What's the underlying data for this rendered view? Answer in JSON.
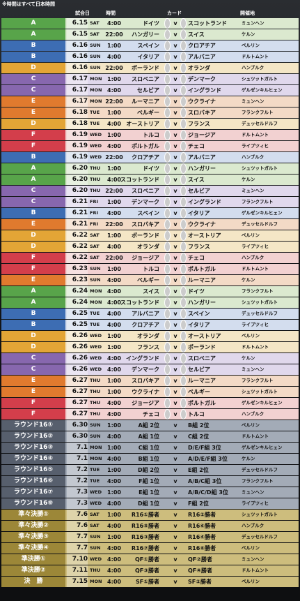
{
  "note": "※時間はすべて日本時間",
  "header": {
    "date": "試合日",
    "time": "時間",
    "card": "カード",
    "venue": "開催地"
  },
  "vs": "v",
  "rows": [
    {
      "group": "A",
      "date": "6.15",
      "day": "SAT",
      "time": "4:00",
      "home": "ドイツ",
      "away": "スコットランド",
      "venue": "ミュンヘン"
    },
    {
      "group": "A",
      "date": "6.15",
      "day": "SAT",
      "time": "22:00",
      "home": "ハンガリー",
      "away": "スイス",
      "venue": "ケルン"
    },
    {
      "group": "B",
      "date": "6.16",
      "day": "SUN",
      "time": "1:00",
      "home": "スペイン",
      "away": "クロアチア",
      "venue": "ベルリン"
    },
    {
      "group": "B",
      "date": "6.16",
      "day": "SUN",
      "time": "4:00",
      "home": "イタリア",
      "away": "アルバニア",
      "venue": "ドルトムント"
    },
    {
      "group": "D",
      "date": "6.16",
      "day": "SUN",
      "time": "22:00",
      "home": "ポーランド",
      "away": "オランダ",
      "venue": "ハンブルク"
    },
    {
      "group": "C",
      "date": "6.17",
      "day": "MON",
      "time": "1:00",
      "home": "スロベニア",
      "away": "デンマーク",
      "venue": "シュツットガルト"
    },
    {
      "group": "C",
      "date": "6.17",
      "day": "MON",
      "time": "4:00",
      "home": "セルビア",
      "away": "イングランド",
      "venue": "ゲルゼンキルヒェン"
    },
    {
      "group": "E",
      "date": "6.17",
      "day": "MON",
      "time": "22:00",
      "home": "ルーマニア",
      "away": "ウクライナ",
      "venue": "ミュンヘン"
    },
    {
      "group": "E",
      "date": "6.18",
      "day": "TUE",
      "time": "1:00",
      "home": "ベルギー",
      "away": "スロバキア",
      "venue": "フランクフルト"
    },
    {
      "group": "D",
      "date": "6.18",
      "day": "TUE",
      "time": "4:00",
      "home": "オーストリア",
      "away": "フランス",
      "venue": "デュッセルドルフ"
    },
    {
      "group": "F",
      "date": "6.19",
      "day": "WED",
      "time": "1:00",
      "home": "トルコ",
      "away": "ジョージア",
      "venue": "ドルトムント"
    },
    {
      "group": "F",
      "date": "6.19",
      "day": "WED",
      "time": "4:00",
      "home": "ポルトガル",
      "away": "チェコ",
      "venue": "ライプツィヒ"
    },
    {
      "group": "B",
      "date": "6.19",
      "day": "WED",
      "time": "22:00",
      "home": "クロアチア",
      "away": "アルバニア",
      "venue": "ハンブルク"
    },
    {
      "group": "A",
      "date": "6.20",
      "day": "THU",
      "time": "1:00",
      "home": "ドイツ",
      "away": "ハンガリー",
      "venue": "シュツットガルト"
    },
    {
      "group": "A",
      "date": "6.20",
      "day": "THU",
      "time": "4:00",
      "home": "スコットランド",
      "away": "スイス",
      "venue": "ケルン"
    },
    {
      "group": "C",
      "date": "6.20",
      "day": "THU",
      "time": "22:00",
      "home": "スロベニア",
      "away": "セルビア",
      "venue": "ミュンヘン"
    },
    {
      "group": "C",
      "date": "6.21",
      "day": "FRI",
      "time": "1:00",
      "home": "デンマーク",
      "away": "イングランド",
      "venue": "フランクフルト"
    },
    {
      "group": "B",
      "date": "6.21",
      "day": "FRI",
      "time": "4:00",
      "home": "スペイン",
      "away": "イタリア",
      "venue": "ゲルゼンキルヒェン"
    },
    {
      "group": "E",
      "date": "6.21",
      "day": "FRI",
      "time": "22:00",
      "home": "スロバキア",
      "away": "ウクライナ",
      "venue": "デュッセルドルフ"
    },
    {
      "group": "D",
      "date": "6.22",
      "day": "SAT",
      "time": "1:00",
      "home": "ポーランド",
      "away": "オーストリア",
      "venue": "ベルリン"
    },
    {
      "group": "D",
      "date": "6.22",
      "day": "SAT",
      "time": "4:00",
      "home": "オランダ",
      "away": "フランス",
      "venue": "ライプツィヒ"
    },
    {
      "group": "F",
      "date": "6.22",
      "day": "SAT",
      "time": "22:00",
      "home": "ジョージア",
      "away": "チェコ",
      "venue": "ハンブルク"
    },
    {
      "group": "F",
      "date": "6.23",
      "day": "SUN",
      "time": "1:00",
      "home": "トルコ",
      "away": "ポルトガル",
      "venue": "ドルトムント"
    },
    {
      "group": "E",
      "date": "6.23",
      "day": "SUN",
      "time": "4:00",
      "home": "ベルギー",
      "away": "ルーマニア",
      "venue": "ケルン"
    },
    {
      "group": "A",
      "date": "6.24",
      "day": "MON",
      "time": "4:00",
      "home": "スイス",
      "away": "ドイツ",
      "venue": "フランクフルト"
    },
    {
      "group": "A",
      "date": "6.24",
      "day": "MON",
      "time": "4:00",
      "home": "スコットランド",
      "away": "ハンガリー",
      "venue": "シュツットガルト"
    },
    {
      "group": "B",
      "date": "6.25",
      "day": "TUE",
      "time": "4:00",
      "home": "アルバニア",
      "away": "スペイン",
      "venue": "デュッセルドルフ"
    },
    {
      "group": "B",
      "date": "6.25",
      "day": "TUE",
      "time": "4:00",
      "home": "クロアチア",
      "away": "イタリア",
      "venue": "ライプツィヒ"
    },
    {
      "group": "D",
      "date": "6.26",
      "day": "WED",
      "time": "1:00",
      "home": "オランダ",
      "away": "オーストリア",
      "venue": "ベルリン"
    },
    {
      "group": "D",
      "date": "6.26",
      "day": "WED",
      "time": "1:00",
      "home": "フランス",
      "away": "ポーランド",
      "venue": "ドルトムント"
    },
    {
      "group": "C",
      "date": "6.26",
      "day": "WED",
      "time": "4:00",
      "home": "イングランド",
      "away": "スロベニア",
      "venue": "ケルン"
    },
    {
      "group": "C",
      "date": "6.26",
      "day": "WED",
      "time": "4:00",
      "home": "デンマーク",
      "away": "セルビア",
      "venue": "ミュンヘン"
    },
    {
      "group": "E",
      "date": "6.27",
      "day": "THU",
      "time": "1:00",
      "home": "スロバキア",
      "away": "ルーマニア",
      "venue": "フランクフルト"
    },
    {
      "group": "E",
      "date": "6.27",
      "day": "THU",
      "time": "1:00",
      "home": "ウクライナ",
      "away": "ベルギー",
      "venue": "シュツットガルト"
    },
    {
      "group": "F",
      "date": "6.27",
      "day": "THU",
      "time": "4:00",
      "home": "ジョージア",
      "away": "ポルトガル",
      "venue": "ゲルゼンキルヒェン"
    },
    {
      "group": "F",
      "date": "6.27",
      "day": "THU",
      "time": "4:00",
      "home": "チェコ",
      "away": "トルコ",
      "venue": "ハンブルク"
    },
    {
      "group": "ラウンド16①",
      "date": "6.30",
      "day": "SUN",
      "time": "1:00",
      "home": "A組 2位",
      "away": "B組 2位",
      "venue": "ベルリン"
    },
    {
      "group": "ラウンド16②",
      "date": "6.30",
      "day": "SUN",
      "time": "4:00",
      "home": "A組 1位",
      "away": "C組 2位",
      "venue": "ドルトムント"
    },
    {
      "group": "ラウンド16③",
      "date": "7.1",
      "day": "MON",
      "time": "1:00",
      "home": "C組 1位",
      "away": "D/E/F組 3位",
      "venue": "ゲルゼンキルヒェン"
    },
    {
      "group": "ラウンド16④",
      "date": "7.1",
      "day": "MON",
      "time": "4:00",
      "home": "B組 1位",
      "away": "A/D/E/F組 3位",
      "venue": "ケルン"
    },
    {
      "group": "ラウンド16⑤",
      "date": "7.2",
      "day": "TUE",
      "time": "1:00",
      "home": "D組 2位",
      "away": "E組 2位",
      "venue": "デュッセルドルフ"
    },
    {
      "group": "ラウンド16⑥",
      "date": "7.2",
      "day": "TUE",
      "time": "4:00",
      "home": "F組 1位",
      "away": "A/B/C組 3位",
      "venue": "フランクフルト"
    },
    {
      "group": "ラウンド16⑦",
      "date": "7.3",
      "day": "WED",
      "time": "1:00",
      "home": "E組 1位",
      "away": "A/B/C/D組 3位",
      "venue": "ミュンヘン"
    },
    {
      "group": "ラウンド16⑧",
      "date": "7.3",
      "day": "WED",
      "time": "4:00",
      "home": "D組 1位",
      "away": "F組 2位",
      "venue": "ライプツィヒ"
    },
    {
      "group": "準々決勝①",
      "date": "7.6",
      "day": "SAT",
      "time": "1:00",
      "home": "R16①勝者",
      "away": "R16②勝者",
      "venue": "シュツットガルト"
    },
    {
      "group": "準々決勝②",
      "date": "7.6",
      "day": "SAT",
      "time": "4:00",
      "home": "R16⑤勝者",
      "away": "R16⑥勝者",
      "venue": "ハンブルク"
    },
    {
      "group": "準々決勝③",
      "date": "7.7",
      "day": "SUN",
      "time": "1:00",
      "home": "R16③勝者",
      "away": "R16④勝者",
      "venue": "デュッセルドルフ"
    },
    {
      "group": "準々決勝④",
      "date": "7.7",
      "day": "SUN",
      "time": "4:00",
      "home": "R16⑦勝者",
      "away": "R16⑧勝者",
      "venue": "ベルリン"
    },
    {
      "group": "準決勝①",
      "date": "7.10",
      "day": "WED",
      "time": "4:00",
      "home": "QF①勝者",
      "away": "QF②勝者",
      "venue": "ミュンヘン"
    },
    {
      "group": "準決勝②",
      "date": "7.11",
      "day": "THU",
      "time": "4:00",
      "home": "QF③勝者",
      "away": "QF④勝者",
      "venue": "ドルトムント"
    },
    {
      "group": "決　勝",
      "date": "7.15",
      "day": "MON",
      "time": "4:00",
      "home": "SF①勝者",
      "away": "SF②勝者",
      "venue": "ベルリン"
    }
  ]
}
